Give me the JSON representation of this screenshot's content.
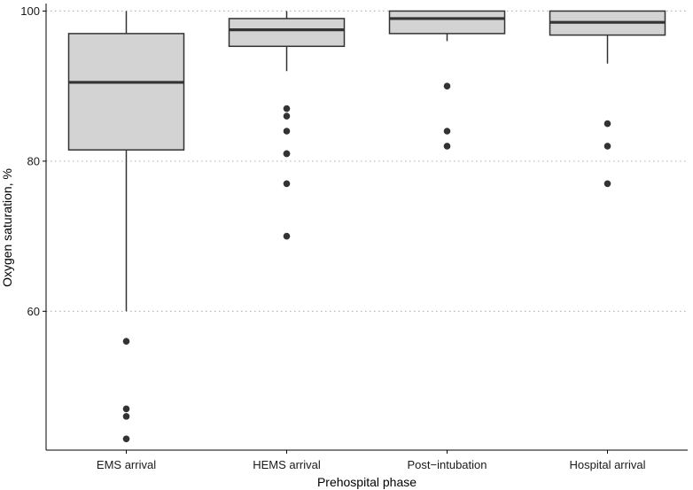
{
  "chart_data": {
    "type": "boxplot",
    "xlabel": "Prehospital phase",
    "ylabel": "Oxygen saturation, %",
    "ylim": [
      41.5,
      101.0
    ],
    "yticks": [
      60,
      80,
      100
    ],
    "grid": "horizontal dotted at major ticks",
    "categories": [
      "EMS arrival",
      "HEMS arrival",
      "Post−intubation",
      "Hospital arrival"
    ],
    "boxes": [
      {
        "category": "EMS arrival",
        "whisker_low": 60,
        "q1": 81.5,
        "median": 90.5,
        "q3": 97,
        "whisker_high": 100,
        "outliers": [
          56,
          47,
          46,
          43
        ]
      },
      {
        "category": "HEMS arrival",
        "whisker_low": 92,
        "q1": 95.3,
        "median": 97.5,
        "q3": 99,
        "whisker_high": 100,
        "outliers": [
          87,
          86,
          84,
          81,
          81,
          77,
          70
        ]
      },
      {
        "category": "Post−intubation",
        "whisker_low": 96,
        "q1": 97,
        "median": 99,
        "q3": 100,
        "whisker_high": 100,
        "outliers": [
          90,
          84,
          82
        ]
      },
      {
        "category": "Hospital arrival",
        "whisker_low": 93,
        "q1": 96.8,
        "median": 98.5,
        "q3": 100,
        "whisker_high": 100,
        "outliers": [
          85,
          82,
          77
        ]
      }
    ],
    "colors": {
      "box_fill": "#d3d3d3",
      "box_stroke": "#333333",
      "outlier": "#333333",
      "grid": "#b0b0b0",
      "axis": "#000000"
    }
  }
}
